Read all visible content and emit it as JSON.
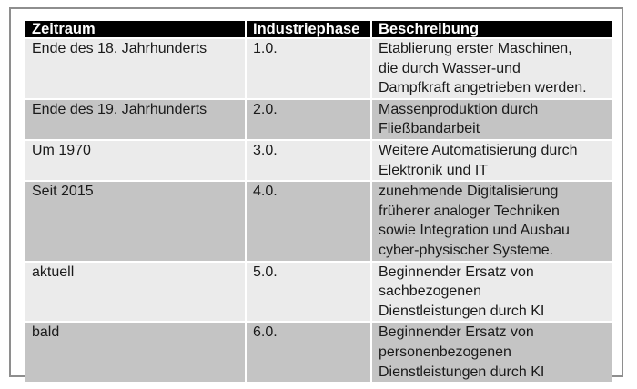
{
  "table": {
    "headers": [
      "Zeitraum",
      "Industriephase",
      "Beschreibung"
    ],
    "rows": [
      {
        "period": "Ende des 18. Jahrhunderts",
        "phase": "1.0.",
        "description": "Etablierung erster Maschinen,\ndie durch Wasser-und\nDampfkraft angetrieben werden."
      },
      {
        "period": "Ende des 19. Jahrhunderts",
        "phase": "2.0.",
        "description": "Massenproduktion durch\nFließbandarbeit"
      },
      {
        "period": "Um 1970",
        "phase": "3.0.",
        "description": "Weitere Automatisierung durch\nElektronik und IT"
      },
      {
        "period": "Seit 2015",
        "phase": "4.0.",
        "description": "zunehmende Digitalisierung\nfrüherer analoger Techniken\nsowie Integration und Ausbau\ncyber-physischer Systeme."
      },
      {
        "period": "aktuell",
        "phase": "5.0.",
        "description": "Beginnender Ersatz von\nsachbezogenen\nDienstleistungen durch KI"
      },
      {
        "period": "bald",
        "phase": "6.0.",
        "description": "Beginnender Ersatz von\npersonenbezogenen\nDienstleistungen durch KI"
      }
    ]
  }
}
